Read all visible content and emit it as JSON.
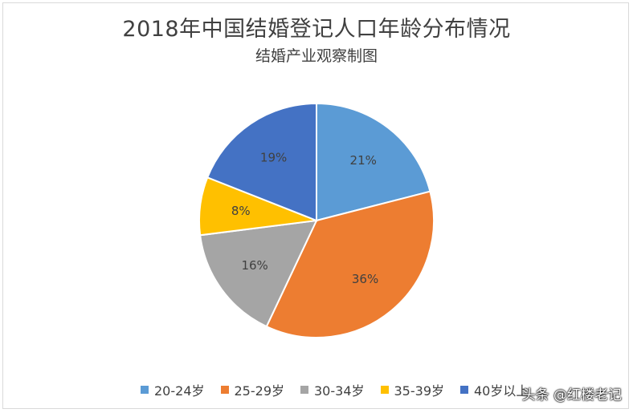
{
  "chart_data": {
    "type": "pie",
    "title": "2018年中国结婚登记人口年龄分布情况",
    "subtitle": "结婚产业观察制图",
    "categories": [
      "20-24岁",
      "25-29岁",
      "30-34岁",
      "35-39岁",
      "40岁以上"
    ],
    "values": [
      21,
      36,
      16,
      8,
      19
    ],
    "value_labels": [
      "21%",
      "36%",
      "16%",
      "8%",
      "19%"
    ],
    "colors": [
      "#5b9bd5",
      "#ed7d31",
      "#a5a5a5",
      "#ffc000",
      "#4472c4"
    ],
    "legend_position": "bottom"
  },
  "watermark": "头条 @红楼老记"
}
